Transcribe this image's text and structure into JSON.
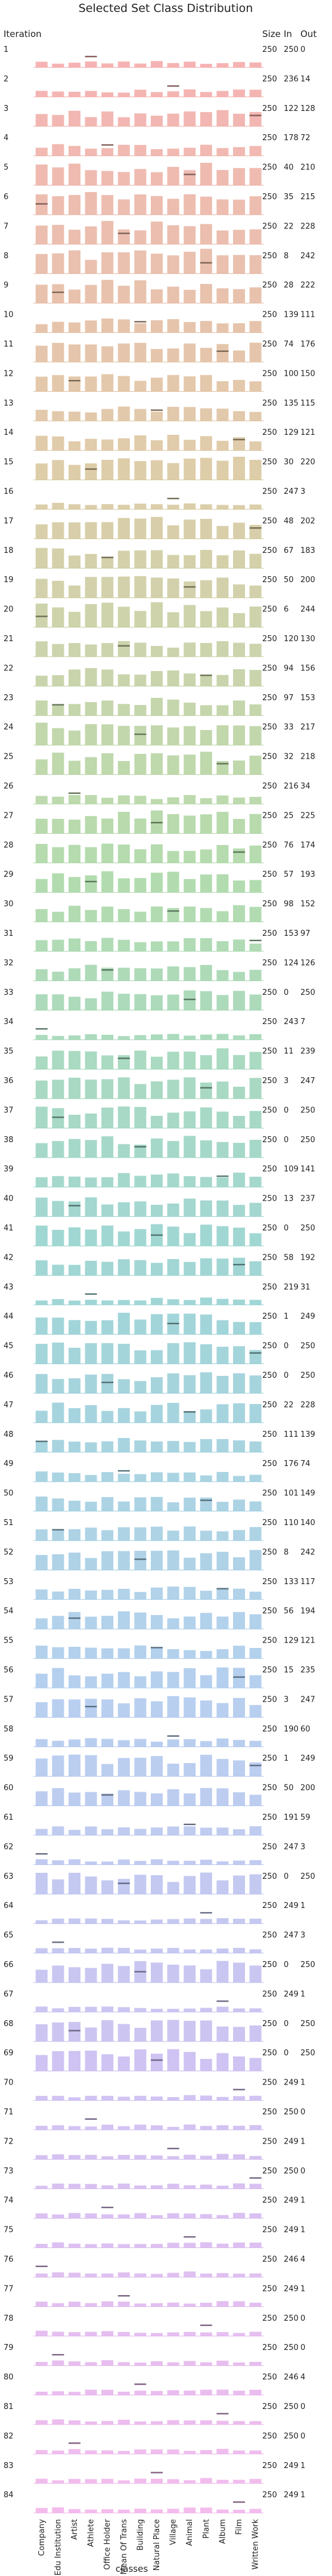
{
  "chart_data": {
    "type": "bar",
    "title": "Selected Set Class Distribution",
    "row_label": "Iteration",
    "xlabel": "classes",
    "column_headers": [
      "Size",
      "In",
      "Out"
    ],
    "categories": [
      "Company",
      "Edu Institution",
      "Artist",
      "Athlete",
      "Office Holder",
      "Mean Of Trans",
      "Building",
      "Natural Place",
      "Village",
      "Animal",
      "Plant",
      "Album",
      "Film",
      "Written Work"
    ],
    "rows": [
      {
        "iteration": 1,
        "size": 250,
        "in": 250,
        "out": 0
      },
      {
        "iteration": 2,
        "size": 250,
        "in": 236,
        "out": 14
      },
      {
        "iteration": 3,
        "size": 250,
        "in": 122,
        "out": 128
      },
      {
        "iteration": 4,
        "size": 250,
        "in": 178,
        "out": 72
      },
      {
        "iteration": 5,
        "size": 250,
        "in": 40,
        "out": 210
      },
      {
        "iteration": 6,
        "size": 250,
        "in": 35,
        "out": 215
      },
      {
        "iteration": 7,
        "size": 250,
        "in": 22,
        "out": 228
      },
      {
        "iteration": 8,
        "size": 250,
        "in": 8,
        "out": 242
      },
      {
        "iteration": 9,
        "size": 250,
        "in": 28,
        "out": 222
      },
      {
        "iteration": 10,
        "size": 250,
        "in": 139,
        "out": 111
      },
      {
        "iteration": 11,
        "size": 250,
        "in": 74,
        "out": 176
      },
      {
        "iteration": 12,
        "size": 250,
        "in": 100,
        "out": 150
      },
      {
        "iteration": 13,
        "size": 250,
        "in": 135,
        "out": 115
      },
      {
        "iteration": 14,
        "size": 250,
        "in": 129,
        "out": 121
      },
      {
        "iteration": 15,
        "size": 250,
        "in": 30,
        "out": 220
      },
      {
        "iteration": 16,
        "size": 250,
        "in": 247,
        "out": 3
      },
      {
        "iteration": 17,
        "size": 250,
        "in": 48,
        "out": 202
      },
      {
        "iteration": 18,
        "size": 250,
        "in": 67,
        "out": 183
      },
      {
        "iteration": 19,
        "size": 250,
        "in": 50,
        "out": 200
      },
      {
        "iteration": 20,
        "size": 250,
        "in": 6,
        "out": 244
      },
      {
        "iteration": 21,
        "size": 250,
        "in": 120,
        "out": 130
      },
      {
        "iteration": 22,
        "size": 250,
        "in": 94,
        "out": 156
      },
      {
        "iteration": 23,
        "size": 250,
        "in": 97,
        "out": 153
      },
      {
        "iteration": 24,
        "size": 250,
        "in": 33,
        "out": 217
      },
      {
        "iteration": 25,
        "size": 250,
        "in": 32,
        "out": 218
      },
      {
        "iteration": 26,
        "size": 250,
        "in": 216,
        "out": 34
      },
      {
        "iteration": 27,
        "size": 250,
        "in": 25,
        "out": 225
      },
      {
        "iteration": 28,
        "size": 250,
        "in": 76,
        "out": 174
      },
      {
        "iteration": 29,
        "size": 250,
        "in": 57,
        "out": 193
      },
      {
        "iteration": 30,
        "size": 250,
        "in": 98,
        "out": 152
      },
      {
        "iteration": 31,
        "size": 250,
        "in": 153,
        "out": 97
      },
      {
        "iteration": 32,
        "size": 250,
        "in": 124,
        "out": 126
      },
      {
        "iteration": 33,
        "size": 250,
        "in": 0,
        "out": 250
      },
      {
        "iteration": 34,
        "size": 250,
        "in": 243,
        "out": 7
      },
      {
        "iteration": 35,
        "size": 250,
        "in": 11,
        "out": 239
      },
      {
        "iteration": 36,
        "size": 250,
        "in": 3,
        "out": 247
      },
      {
        "iteration": 37,
        "size": 250,
        "in": 0,
        "out": 250
      },
      {
        "iteration": 38,
        "size": 250,
        "in": 0,
        "out": 250
      },
      {
        "iteration": 39,
        "size": 250,
        "in": 109,
        "out": 141
      },
      {
        "iteration": 40,
        "size": 250,
        "in": 13,
        "out": 237
      },
      {
        "iteration": 41,
        "size": 250,
        "in": 0,
        "out": 250
      },
      {
        "iteration": 42,
        "size": 250,
        "in": 58,
        "out": 192
      },
      {
        "iteration": 43,
        "size": 250,
        "in": 219,
        "out": 31
      },
      {
        "iteration": 44,
        "size": 250,
        "in": 1,
        "out": 249
      },
      {
        "iteration": 45,
        "size": 250,
        "in": 0,
        "out": 250
      },
      {
        "iteration": 46,
        "size": 250,
        "in": 0,
        "out": 250
      },
      {
        "iteration": 47,
        "size": 250,
        "in": 22,
        "out": 228
      },
      {
        "iteration": 48,
        "size": 250,
        "in": 111,
        "out": 139
      },
      {
        "iteration": 49,
        "size": 250,
        "in": 176,
        "out": 74
      },
      {
        "iteration": 50,
        "size": 250,
        "in": 101,
        "out": 149
      },
      {
        "iteration": 51,
        "size": 250,
        "in": 110,
        "out": 140
      },
      {
        "iteration": 52,
        "size": 250,
        "in": 8,
        "out": 242
      },
      {
        "iteration": 53,
        "size": 250,
        "in": 133,
        "out": 117
      },
      {
        "iteration": 54,
        "size": 250,
        "in": 56,
        "out": 194
      },
      {
        "iteration": 55,
        "size": 250,
        "in": 129,
        "out": 121
      },
      {
        "iteration": 56,
        "size": 250,
        "in": 15,
        "out": 235
      },
      {
        "iteration": 57,
        "size": 250,
        "in": 3,
        "out": 247
      },
      {
        "iteration": 58,
        "size": 250,
        "in": 190,
        "out": 60
      },
      {
        "iteration": 59,
        "size": 250,
        "in": 1,
        "out": 249
      },
      {
        "iteration": 60,
        "size": 250,
        "in": 50,
        "out": 200
      },
      {
        "iteration": 61,
        "size": 250,
        "in": 191,
        "out": 59
      },
      {
        "iteration": 62,
        "size": 250,
        "in": 247,
        "out": 3
      },
      {
        "iteration": 63,
        "size": 250,
        "in": 0,
        "out": 250
      },
      {
        "iteration": 64,
        "size": 250,
        "in": 249,
        "out": 1
      },
      {
        "iteration": 65,
        "size": 250,
        "in": 247,
        "out": 3
      },
      {
        "iteration": 66,
        "size": 250,
        "in": 0,
        "out": 250
      },
      {
        "iteration": 67,
        "size": 250,
        "in": 249,
        "out": 1
      },
      {
        "iteration": 68,
        "size": 250,
        "in": 0,
        "out": 250
      },
      {
        "iteration": 69,
        "size": 250,
        "in": 0,
        "out": 250
      },
      {
        "iteration": 70,
        "size": 250,
        "in": 249,
        "out": 1
      },
      {
        "iteration": 71,
        "size": 250,
        "in": 250,
        "out": 0
      },
      {
        "iteration": 72,
        "size": 250,
        "in": 249,
        "out": 1
      },
      {
        "iteration": 73,
        "size": 250,
        "in": 250,
        "out": 0
      },
      {
        "iteration": 74,
        "size": 250,
        "in": 249,
        "out": 1
      },
      {
        "iteration": 75,
        "size": 250,
        "in": 249,
        "out": 1
      },
      {
        "iteration": 76,
        "size": 250,
        "in": 246,
        "out": 4
      },
      {
        "iteration": 77,
        "size": 250,
        "in": 249,
        "out": 1
      },
      {
        "iteration": 78,
        "size": 250,
        "in": 250,
        "out": 0
      },
      {
        "iteration": 79,
        "size": 250,
        "in": 250,
        "out": 0
      },
      {
        "iteration": 80,
        "size": 250,
        "in": 246,
        "out": 4
      },
      {
        "iteration": 81,
        "size": 250,
        "in": 250,
        "out": 0
      },
      {
        "iteration": 82,
        "size": 250,
        "in": 250,
        "out": 0
      },
      {
        "iteration": 83,
        "size": 250,
        "in": 249,
        "out": 1
      },
      {
        "iteration": 84,
        "size": 250,
        "in": 249,
        "out": 1
      }
    ],
    "colors": {
      "start": "#f4a6a6",
      "mid1": "#d9c49a",
      "mid2": "#a6d6a0",
      "mid3": "#8fcfcf",
      "mid4": "#a9c8ec",
      "mid5": "#c9b8f0",
      "end": "#f2b0ea"
    }
  }
}
